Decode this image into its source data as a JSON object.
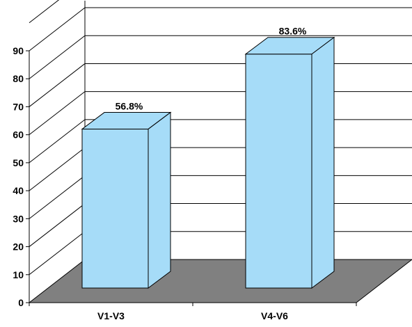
{
  "chart_data": {
    "type": "bar",
    "title": "",
    "xlabel": "",
    "ylabel": "",
    "categories": [
      "V1-V3",
      "V4-V6"
    ],
    "values": [
      56.8,
      83.6
    ],
    "data_labels": [
      "56.8%",
      "83.6%"
    ],
    "ylim": [
      0,
      90
    ],
    "yticks": [
      0,
      10,
      20,
      30,
      40,
      50,
      60,
      70,
      80,
      90
    ],
    "grid": true,
    "three_d": true,
    "legend": "none",
    "colors": {
      "bar_face": "#A6DCF8",
      "floor": "#808080",
      "gridline": "#000000",
      "outline": "#000000"
    }
  }
}
